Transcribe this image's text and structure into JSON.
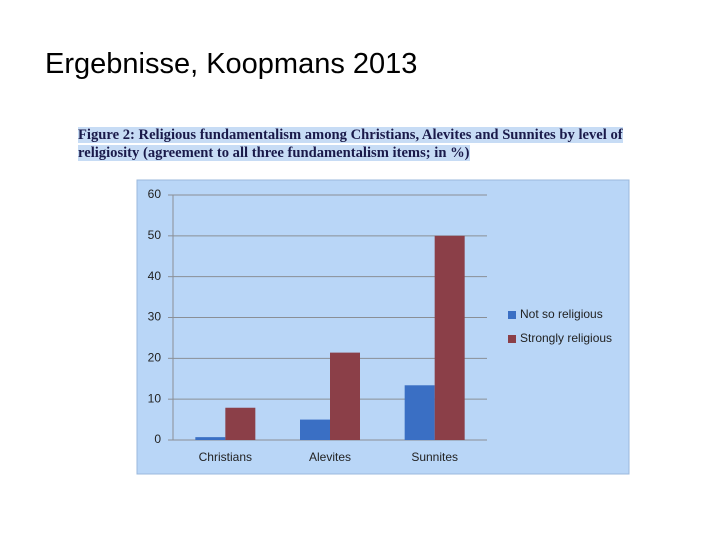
{
  "slide_title": "Ergebnisse, Koopmans 2013",
  "chart_data": {
    "type": "bar",
    "title": "Figure 2: Religious fundamentalism among Christians, Alevites and Sunnites by level of religiosity (agreement to all three fundamentalism items; in %)",
    "categories": [
      "Christians",
      "Alevites",
      "Sunnites"
    ],
    "series": [
      {
        "name": "Not so religious",
        "color": "#3a6fc4",
        "values": [
          0.7,
          5.0,
          13.4
        ]
      },
      {
        "name": "Strongly religious",
        "color": "#8b3f48",
        "values": [
          7.9,
          21.4,
          50.0
        ]
      }
    ],
    "ylim": [
      0,
      60
    ],
    "yticks": [
      0,
      10,
      20,
      30,
      40,
      50,
      60
    ],
    "grid": true,
    "legend": "right"
  }
}
